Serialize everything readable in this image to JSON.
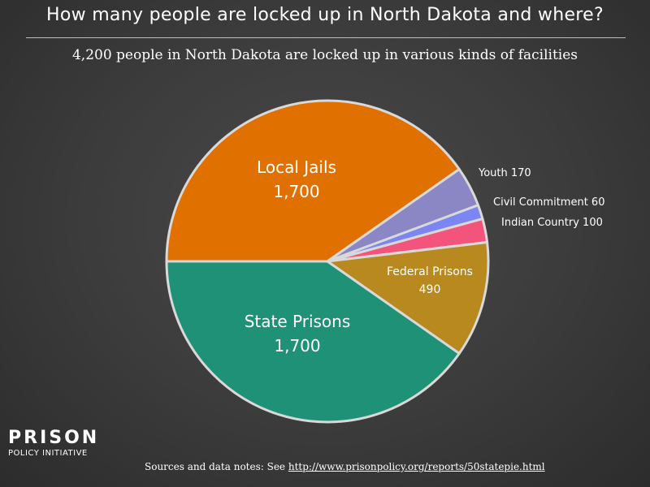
{
  "title": "How many people are locked up in North Dakota and where?",
  "subtitle": "4,200 people in North Dakota are locked up in various kinds of facilities",
  "chart_data": {
    "type": "pie",
    "slices": [
      {
        "label": "Local Jails",
        "value_label": "1,700",
        "value": 1700,
        "color": "#e07000",
        "label_placement": "inside"
      },
      {
        "label": "Youth",
        "value_label": "170",
        "value": 170,
        "color": "#8a87c4",
        "label_placement": "outside"
      },
      {
        "label": "Civil Commitment",
        "value_label": "60",
        "value": 60,
        "color": "#7b86f2",
        "label_placement": "outside"
      },
      {
        "label": "Indian Country",
        "value_label": "100",
        "value": 100,
        "color": "#f2547c",
        "label_placement": "outside"
      },
      {
        "label": "Federal Prisons",
        "value_label": "490",
        "value": 490,
        "color": "#b8891f",
        "label_placement": "inside"
      },
      {
        "label": "State Prisons",
        "value_label": "1,700",
        "value": 1700,
        "color": "#1f9176",
        "label_placement": "inside"
      }
    ],
    "slice_border_color": "#d9d9d9"
  },
  "logo": {
    "line1": "PRISON",
    "line2": "POLICY INITIATIVE"
  },
  "sources": {
    "prefix": "Sources and data notes: See ",
    "link": "http://www.prisonpolicy.org/reports/50statepie.html"
  }
}
